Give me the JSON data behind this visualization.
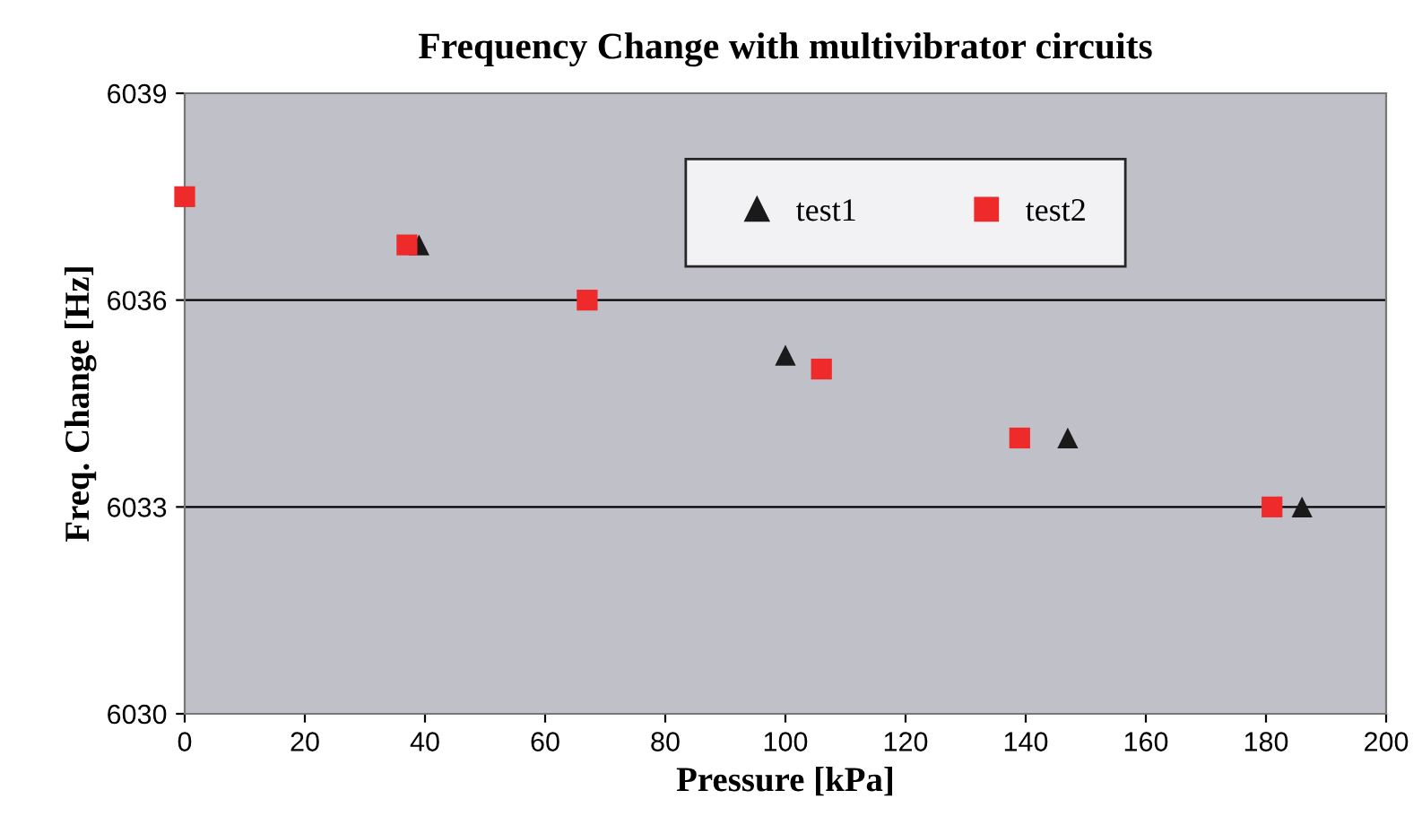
{
  "chart_data": {
    "type": "scatter",
    "title": "Frequency Change with multivibrator circuits",
    "xlabel": "Pressure [kPa]",
    "ylabel": "Freq. Change [Hz]",
    "series": [
      {
        "name": "test1",
        "color": "#1a1a1a",
        "marker": "triangle",
        "x": [
          39,
          100,
          147,
          186
        ],
        "values": [
          6036.8,
          6035.2,
          6034.0,
          6033.0
        ]
      },
      {
        "name": "test2",
        "color": "#ee2a2a",
        "marker": "square",
        "x": [
          0,
          37,
          67,
          106,
          139,
          181
        ],
        "values": [
          6037.5,
          6036.8,
          6036.0,
          6035.0,
          6034.0,
          6033.0
        ]
      }
    ],
    "xlim": [
      0,
      200
    ],
    "xticks": [
      0,
      20,
      40,
      60,
      80,
      100,
      120,
      140,
      160,
      180,
      200
    ],
    "ylim": [
      6030,
      6039
    ],
    "yticks": [
      6030,
      6033,
      6036,
      6039
    ],
    "grid": "y",
    "legend": "top"
  }
}
